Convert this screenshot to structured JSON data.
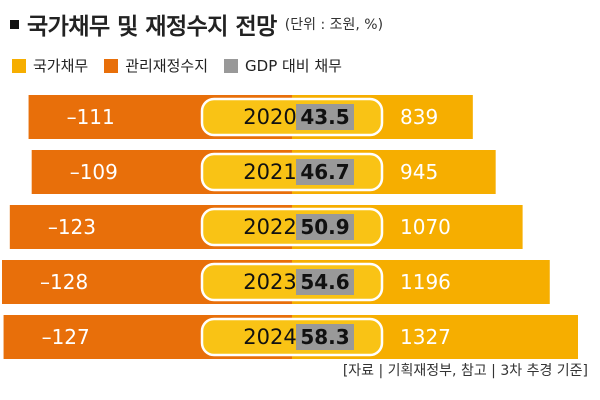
{
  "title": "국가채무 및 재정수지 전망",
  "unit_note": "(단위 : 조원, %)",
  "colors": {
    "debt": "#F6AE00",
    "balance": "#E86F0A",
    "ratio": "#999999",
    "pill": "#F9C315"
  },
  "chart_data": {
    "type": "bar",
    "categories": [
      "2020",
      "2021",
      "2022",
      "2023",
      "2024"
    ],
    "series": [
      {
        "name": "국가채무",
        "values": [
          839,
          945,
          1070,
          1196,
          1327
        ],
        "labels": [
          "839",
          "945",
          "1070",
          "1196",
          "1327"
        ]
      },
      {
        "name": "관리재정수지",
        "values": [
          -111,
          -109,
          -123,
          -128,
          -127
        ],
        "labels": [
          "–111",
          "–109",
          "–123",
          "–128",
          "–127"
        ]
      },
      {
        "name": "GDP 대비 채무",
        "values": [
          43.5,
          46.7,
          50.9,
          54.6,
          58.3
        ],
        "labels": [
          "43.5",
          "46.7",
          "50.9",
          "54.6",
          "58.3"
        ]
      }
    ],
    "legend_position": "top-left"
  },
  "source": "[자료 | 기획재정부, 참고 | 3차 추경 기준]"
}
